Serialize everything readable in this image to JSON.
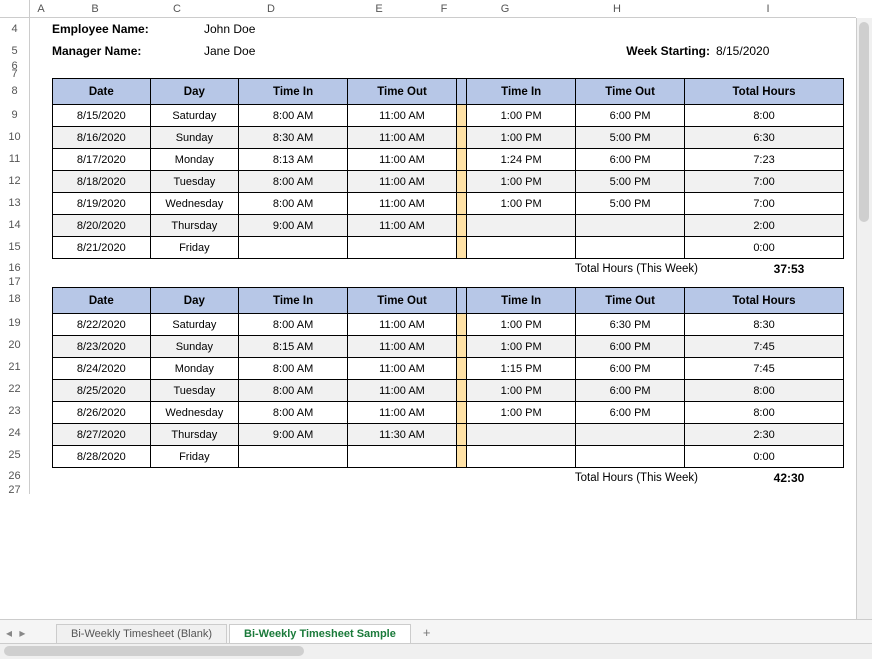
{
  "columns": [
    {
      "letter": "A",
      "width": 22
    },
    {
      "letter": "B",
      "width": 86
    },
    {
      "letter": "C",
      "width": 78
    },
    {
      "letter": "D",
      "width": 110
    },
    {
      "letter": "E",
      "width": 106
    },
    {
      "letter": "F",
      "width": 24
    },
    {
      "letter": "G",
      "width": 98
    },
    {
      "letter": "H",
      "width": 126
    },
    {
      "letter": "I",
      "width": 176
    }
  ],
  "rows": [
    {
      "n": "4",
      "h": 22
    },
    {
      "n": "5",
      "h": 22
    },
    {
      "n": "6",
      "h": 8
    },
    {
      "n": "7",
      "h": 8
    },
    {
      "n": "8",
      "h": 26
    },
    {
      "n": "9",
      "h": 22
    },
    {
      "n": "10",
      "h": 22
    },
    {
      "n": "11",
      "h": 22
    },
    {
      "n": "12",
      "h": 22
    },
    {
      "n": "13",
      "h": 22
    },
    {
      "n": "14",
      "h": 22
    },
    {
      "n": "15",
      "h": 22
    },
    {
      "n": "16",
      "h": 20
    },
    {
      "n": "17",
      "h": 8
    },
    {
      "n": "18",
      "h": 26
    },
    {
      "n": "19",
      "h": 22
    },
    {
      "n": "20",
      "h": 22
    },
    {
      "n": "21",
      "h": 22
    },
    {
      "n": "22",
      "h": 22
    },
    {
      "n": "23",
      "h": 22
    },
    {
      "n": "24",
      "h": 22
    },
    {
      "n": "25",
      "h": 22
    },
    {
      "n": "26",
      "h": 20
    },
    {
      "n": "27",
      "h": 8
    }
  ],
  "labels": {
    "employee_name_label": "Employee Name:",
    "employee_name": "John Doe",
    "manager_name_label": "Manager Name:",
    "manager_name": "Jane Doe",
    "week_starting_label": "Week Starting:",
    "week_starting": "8/15/2020",
    "total_hours_week": "Total Hours (This Week)"
  },
  "headers": {
    "date": "Date",
    "day": "Day",
    "time_in": "Time In",
    "time_out": "Time Out",
    "total_hours": "Total Hours"
  },
  "week1": {
    "rows": [
      {
        "date": "8/15/2020",
        "day": "Saturday",
        "in1": "8:00 AM",
        "out1": "11:00 AM",
        "in2": "1:00 PM",
        "out2": "6:00 PM",
        "total": "8:00"
      },
      {
        "date": "8/16/2020",
        "day": "Sunday",
        "in1": "8:30 AM",
        "out1": "11:00 AM",
        "in2": "1:00 PM",
        "out2": "5:00 PM",
        "total": "6:30"
      },
      {
        "date": "8/17/2020",
        "day": "Monday",
        "in1": "8:13 AM",
        "out1": "11:00 AM",
        "in2": "1:24 PM",
        "out2": "6:00 PM",
        "total": "7:23"
      },
      {
        "date": "8/18/2020",
        "day": "Tuesday",
        "in1": "8:00 AM",
        "out1": "11:00 AM",
        "in2": "1:00 PM",
        "out2": "5:00 PM",
        "total": "7:00"
      },
      {
        "date": "8/19/2020",
        "day": "Wednesday",
        "in1": "8:00 AM",
        "out1": "11:00 AM",
        "in2": "1:00 PM",
        "out2": "5:00 PM",
        "total": "7:00"
      },
      {
        "date": "8/20/2020",
        "day": "Thursday",
        "in1": "9:00 AM",
        "out1": "11:00 AM",
        "in2": "",
        "out2": "",
        "total": "2:00"
      },
      {
        "date": "8/21/2020",
        "day": "Friday",
        "in1": "",
        "out1": "",
        "in2": "",
        "out2": "",
        "total": "0:00"
      }
    ],
    "total": "37:53"
  },
  "week2": {
    "rows": [
      {
        "date": "8/22/2020",
        "day": "Saturday",
        "in1": "8:00 AM",
        "out1": "11:00 AM",
        "in2": "1:00 PM",
        "out2": "6:30 PM",
        "total": "8:30"
      },
      {
        "date": "8/23/2020",
        "day": "Sunday",
        "in1": "8:15 AM",
        "out1": "11:00 AM",
        "in2": "1:00 PM",
        "out2": "6:00 PM",
        "total": "7:45"
      },
      {
        "date": "8/24/2020",
        "day": "Monday",
        "in1": "8:00 AM",
        "out1": "11:00 AM",
        "in2": "1:15 PM",
        "out2": "6:00 PM",
        "total": "7:45"
      },
      {
        "date": "8/25/2020",
        "day": "Tuesday",
        "in1": "8:00 AM",
        "out1": "11:00 AM",
        "in2": "1:00 PM",
        "out2": "6:00 PM",
        "total": "8:00"
      },
      {
        "date": "8/26/2020",
        "day": "Wednesday",
        "in1": "8:00 AM",
        "out1": "11:00 AM",
        "in2": "1:00 PM",
        "out2": "6:00 PM",
        "total": "8:00"
      },
      {
        "date": "8/27/2020",
        "day": "Thursday",
        "in1": "9:00 AM",
        "out1": "11:30 AM",
        "in2": "",
        "out2": "",
        "total": "2:30"
      },
      {
        "date": "8/28/2020",
        "day": "Friday",
        "in1": "",
        "out1": "",
        "in2": "",
        "out2": "",
        "total": "0:00"
      }
    ],
    "total": "42:30"
  },
  "tabs": [
    {
      "label": "Bi-Weekly Timesheet (Blank)",
      "active": false
    },
    {
      "label": "Bi-Weekly Timesheet Sample",
      "active": true
    }
  ],
  "tab_add": "+",
  "colors": {
    "header_bg": "#b7c7e7",
    "sep_bg": "#ffe2a6",
    "alt_bg": "#f1f1f1",
    "border": "#000000",
    "active_tab_fg": "#1a7a3a"
  }
}
